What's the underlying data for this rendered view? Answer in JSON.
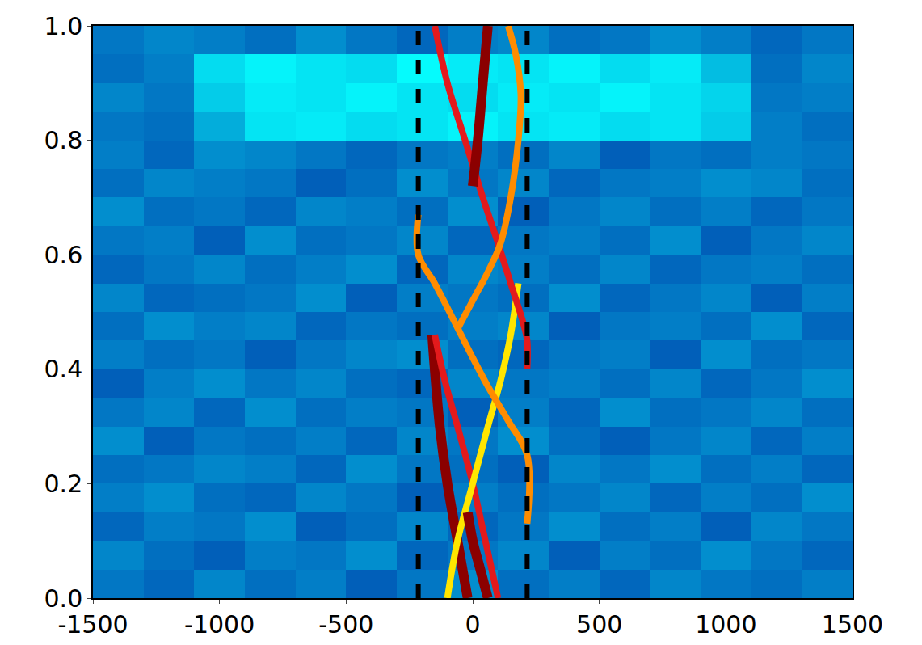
{
  "chart_data": {
    "type": "heatmap",
    "x": [
      -1500,
      -1300,
      -1100,
      -900,
      -700,
      -500,
      -300,
      -100,
      100,
      300,
      500,
      700,
      900,
      1100,
      1300,
      1500
    ],
    "y": [
      0,
      0.05,
      0.1,
      0.15,
      0.2,
      0.25,
      0.3,
      0.35,
      0.4,
      0.45,
      0.5,
      0.55,
      0.6,
      0.65,
      0.7,
      0.75,
      0.8,
      0.85,
      0.9,
      0.95,
      1.0
    ],
    "z": [
      [
        0.2,
        0.18,
        0.22,
        0.19,
        0.21,
        0.17,
        0.2,
        0.23,
        0.19,
        0.21,
        0.18,
        0.22,
        0.2,
        0.19,
        0.21
      ],
      [
        0.22,
        0.19,
        0.17,
        0.21,
        0.2,
        0.23,
        0.18,
        0.2,
        0.22,
        0.17,
        0.21,
        0.19,
        0.23,
        0.2,
        0.18
      ],
      [
        0.18,
        0.21,
        0.2,
        0.23,
        0.17,
        0.19,
        0.22,
        0.18,
        0.2,
        0.23,
        0.19,
        0.21,
        0.17,
        0.22,
        0.2
      ],
      [
        0.21,
        0.23,
        0.19,
        0.18,
        0.22,
        0.2,
        0.17,
        0.21,
        0.19,
        0.2,
        0.22,
        0.18,
        0.21,
        0.19,
        0.23
      ],
      [
        0.19,
        0.2,
        0.22,
        0.21,
        0.18,
        0.23,
        0.2,
        0.19,
        0.17,
        0.22,
        0.2,
        0.23,
        0.19,
        0.21,
        0.18
      ],
      [
        0.23,
        0.17,
        0.2,
        0.19,
        0.21,
        0.18,
        0.22,
        0.2,
        0.23,
        0.19,
        0.17,
        0.2,
        0.22,
        0.18,
        0.21
      ],
      [
        0.2,
        0.22,
        0.18,
        0.23,
        0.19,
        0.21,
        0.2,
        0.17,
        0.21,
        0.18,
        0.23,
        0.19,
        0.2,
        0.22,
        0.19
      ],
      [
        0.17,
        0.21,
        0.23,
        0.2,
        0.22,
        0.19,
        0.18,
        0.22,
        0.2,
        0.21,
        0.19,
        0.22,
        0.18,
        0.2,
        0.23
      ],
      [
        0.21,
        0.19,
        0.2,
        0.17,
        0.2,
        0.22,
        0.23,
        0.19,
        0.18,
        0.2,
        0.21,
        0.17,
        0.23,
        0.19,
        0.2
      ],
      [
        0.19,
        0.23,
        0.21,
        0.22,
        0.18,
        0.2,
        0.19,
        0.21,
        0.22,
        0.17,
        0.2,
        0.21,
        0.19,
        0.23,
        0.18
      ],
      [
        0.22,
        0.18,
        0.19,
        0.2,
        0.23,
        0.17,
        0.21,
        0.2,
        0.19,
        0.23,
        0.18,
        0.2,
        0.22,
        0.17,
        0.21
      ],
      [
        0.18,
        0.2,
        0.22,
        0.19,
        0.21,
        0.23,
        0.18,
        0.22,
        0.21,
        0.19,
        0.22,
        0.18,
        0.2,
        0.21,
        0.19
      ],
      [
        0.2,
        0.21,
        0.17,
        0.23,
        0.19,
        0.2,
        0.22,
        0.18,
        0.2,
        0.21,
        0.19,
        0.23,
        0.17,
        0.2,
        0.22
      ],
      [
        0.23,
        0.19,
        0.2,
        0.18,
        0.22,
        0.21,
        0.19,
        0.23,
        0.17,
        0.2,
        0.22,
        0.19,
        0.21,
        0.18,
        0.2
      ],
      [
        0.19,
        0.22,
        0.21,
        0.2,
        0.17,
        0.19,
        0.23,
        0.2,
        0.22,
        0.18,
        0.2,
        0.21,
        0.23,
        0.22,
        0.19
      ],
      [
        0.21,
        0.18,
        0.23,
        0.22,
        0.2,
        0.18,
        0.2,
        0.21,
        0.19,
        0.22,
        0.17,
        0.2,
        0.19,
        0.21,
        0.2
      ],
      [
        0.2,
        0.19,
        0.27,
        0.34,
        0.35,
        0.33,
        0.34,
        0.36,
        0.34,
        0.35,
        0.33,
        0.34,
        0.31,
        0.21,
        0.19
      ],
      [
        0.22,
        0.2,
        0.31,
        0.35,
        0.34,
        0.36,
        0.34,
        0.33,
        0.35,
        0.34,
        0.36,
        0.34,
        0.32,
        0.2,
        0.21
      ],
      [
        0.19,
        0.21,
        0.33,
        0.36,
        0.34,
        0.33,
        0.37,
        0.35,
        0.34,
        0.36,
        0.33,
        0.35,
        0.29,
        0.19,
        0.22
      ],
      [
        0.2,
        0.22,
        0.21,
        0.19,
        0.23,
        0.2,
        0.18,
        0.21,
        0.22,
        0.19,
        0.2,
        0.23,
        0.21,
        0.18,
        0.2
      ]
    ],
    "zlim": [
      0,
      1
    ],
    "xlim": [
      -1500,
      1500
    ],
    "ylim": [
      0,
      1.0
    ],
    "xticks": [
      -1500,
      -1000,
      -500,
      0,
      500,
      1000,
      1500
    ],
    "yticks": [
      {
        "value": 0,
        "label": "0.0"
      },
      0.2,
      0.4,
      0.6,
      0.8,
      {
        "value": 1.0,
        "label": "1.0"
      }
    ],
    "series": [
      {
        "type": "line",
        "color": "#8b0000",
        "x": [
          -20,
          -60,
          -100,
          -130,
          -150,
          -160
        ],
        "y": [
          0,
          0.1,
          0.2,
          0.3,
          0.4,
          0.46
        ]
      },
      {
        "type": "line",
        "color": "#e31a1c",
        "x": [
          100,
          50,
          0,
          -60,
          -110,
          -150
        ],
        "y": [
          0,
          0.1,
          0.2,
          0.3,
          0.38,
          0.46
        ]
      },
      {
        "type": "line",
        "color": "#ffe600",
        "x": [
          -100,
          -60,
          0,
          60,
          110,
          150,
          180
        ],
        "y": [
          0,
          0.1,
          0.2,
          0.3,
          0.38,
          0.46,
          0.55
        ]
      },
      {
        "type": "line",
        "color": "#ff8c00",
        "x": [
          215,
          215,
          140,
          60,
          0,
          -80,
          -150,
          -215,
          -215
        ],
        "y": [
          0.13,
          0.25,
          0.31,
          0.37,
          0.42,
          0.49,
          0.55,
          0.6,
          0.67
        ]
      },
      {
        "type": "line",
        "color": "#e31a1c",
        "x": [
          -150,
          -100,
          -30,
          40,
          100,
          150,
          200,
          215,
          215
        ],
        "y": [
          1.0,
          0.9,
          0.8,
          0.7,
          0.62,
          0.55,
          0.48,
          0.45,
          0.4
        ]
      },
      {
        "type": "line",
        "color": "#ff8c00",
        "x": [
          -60,
          0,
          60,
          110,
          150,
          180,
          190,
          170,
          140
        ],
        "y": [
          0.47,
          0.52,
          0.57,
          0.62,
          0.7,
          0.8,
          0.88,
          0.95,
          1.0
        ]
      },
      {
        "type": "line",
        "color": "#8b0000",
        "x": [
          0,
          20,
          40,
          60
        ],
        "y": [
          0.72,
          0.8,
          0.9,
          1.0
        ]
      },
      {
        "type": "line",
        "color": "#8b0000",
        "x": [
          60,
          30,
          0,
          -20
        ],
        "y": [
          0,
          0.05,
          0.1,
          0.15
        ]
      },
      {
        "type": "line",
        "line_style": "dashed",
        "color": "#000000",
        "x": [
          -215,
          -215
        ],
        "y": [
          0,
          1.0
        ]
      },
      {
        "type": "line",
        "line_style": "dashed",
        "color": "#000000",
        "x": [
          215,
          215
        ],
        "y": [
          0,
          1.0
        ]
      }
    ]
  }
}
